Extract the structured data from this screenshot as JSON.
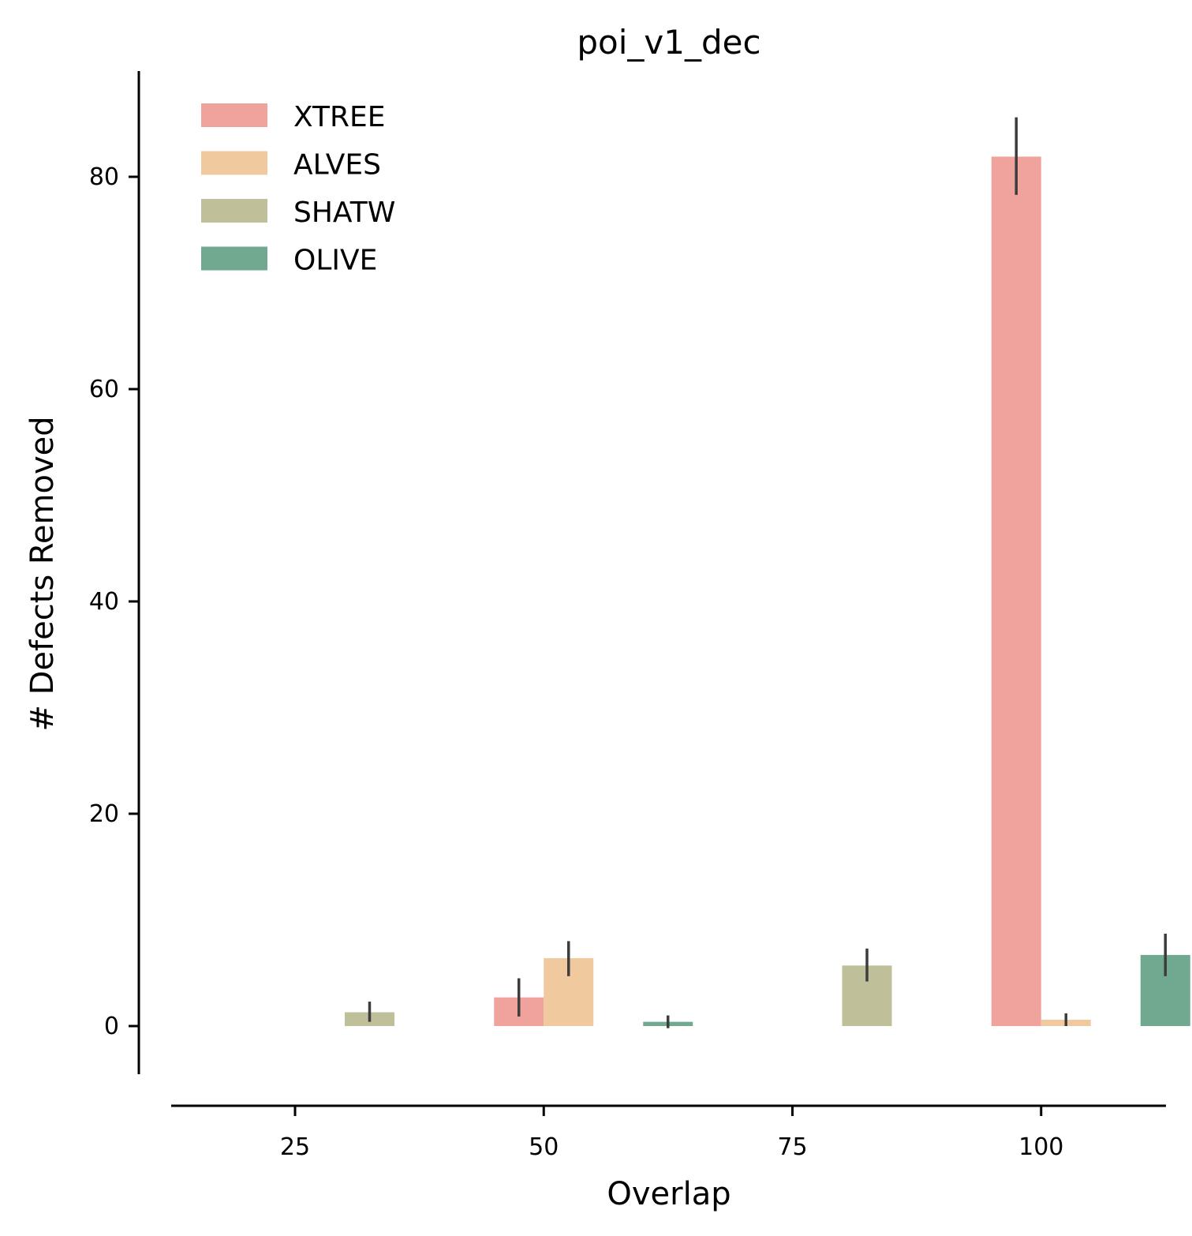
{
  "chart_data": {
    "type": "bar",
    "title": "poi_v1_dec",
    "xlabel": "Overlap",
    "ylabel": "# Defects Removed",
    "categories": [
      "25",
      "50",
      "75",
      "100"
    ],
    "x_ticks": [
      "25",
      "50",
      "75",
      "100"
    ],
    "y_ticks": [
      "0",
      "20",
      "40",
      "60",
      "80"
    ],
    "ylim": [
      -4.5,
      89.5
    ],
    "grid": false,
    "legend_position": "top-left",
    "series": [
      {
        "name": "XTREE",
        "color": "#f0a29d",
        "values": [
          0,
          2.7,
          0,
          81.9
        ],
        "error": [
          null,
          [
            0.9,
            4.5
          ],
          null,
          [
            78.3,
            85.6
          ]
        ]
      },
      {
        "name": "ALVES",
        "color": "#f1c99e",
        "values": [
          0,
          6.4,
          0,
          0.6
        ],
        "error": [
          null,
          [
            4.7,
            8.0
          ],
          null,
          [
            0,
            1.2
          ]
        ]
      },
      {
        "name": "SHATW",
        "color": "#bfbf9a",
        "values": [
          1.3,
          0,
          5.7,
          0
        ],
        "error": [
          [
            0.4,
            2.3
          ],
          null,
          [
            4.2,
            7.3
          ],
          null
        ]
      },
      {
        "name": "OLIVE",
        "color": "#70a890",
        "values": [
          0,
          0.4,
          0,
          6.7
        ],
        "error": [
          null,
          [
            -0.2,
            1.0
          ],
          null,
          [
            4.7,
            8.7
          ]
        ]
      }
    ]
  }
}
